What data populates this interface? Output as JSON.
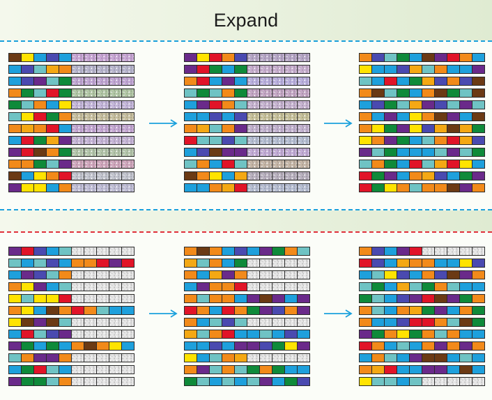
{
  "title": "Expand",
  "palette": {
    "P": "#6a2a8a",
    "R": "#e11428",
    "G": "#0f8a3a",
    "T": "#6fc3c4",
    "B": "#1ea0dc",
    "O": "#f28a1a",
    "Y": "#ffe300",
    "Br": "#6b3a14",
    "N": "#4a4ab0",
    "A": "#f4a814"
  },
  "accent": {
    "blue": "#1aa0dc",
    "red": "#e0303a"
  },
  "panels": [
    {
      "name": "top-panel",
      "steps": [
        {
          "rows": [
            {
              "colors": [
                "Br",
                "Y",
                "B",
                "N",
                "B"
              ],
              "tint": "#c9a7d6"
            },
            {
              "colors": [
                "B",
                "N",
                "T",
                "A",
                "O"
              ],
              "tint": "#b9b7cf"
            },
            {
              "colors": [
                "B",
                "N",
                "P",
                "T",
                "G"
              ],
              "tint": "#c3a8d6"
            },
            {
              "colors": [
                "O",
                "G",
                "T",
                "R",
                "G"
              ],
              "tint": "#b4c9a8"
            },
            {
              "colors": [
                "G",
                "T",
                "O",
                "B",
                "Y"
              ],
              "tint": "#c6b8dc"
            },
            {
              "colors": [
                "T",
                "Y",
                "R",
                "G",
                "O"
              ],
              "tint": "#c8c0a0"
            },
            {
              "colors": [
                "O",
                "A",
                "O",
                "R",
                "B"
              ],
              "tint": "#c6a9d4"
            },
            {
              "colors": [
                "B",
                "R",
                "G",
                "A",
                "P"
              ],
              "tint": "#c7b6d8"
            },
            {
              "colors": [
                "P",
                "R",
                "Br",
                "O",
                "G"
              ],
              "tint": "#b6c8ad"
            },
            {
              "colors": [
                "O",
                "O",
                "G",
                "T",
                "P"
              ],
              "tint": "#d2a9bf"
            },
            {
              "colors": [
                "Br",
                "B",
                "Y",
                "O",
                "R"
              ],
              "tint": "#c4c6d0"
            },
            {
              "colors": [
                "P",
                "Y",
                "Y",
                "B",
                "O"
              ],
              "tint": "#c2c0d8"
            }
          ]
        },
        {
          "rows": [
            {
              "colors": [
                "P",
                "Y",
                "R",
                "O",
                "N"
              ],
              "tint": "#b8a8c8"
            },
            {
              "colors": [
                "P",
                "R",
                "G",
                "B",
                "G"
              ],
              "tint": "#c9b0d0"
            },
            {
              "colors": [
                "O",
                "R",
                "B",
                "P",
                "B"
              ],
              "tint": "#bcb2e0"
            },
            {
              "colors": [
                "T",
                "G",
                "T",
                "O",
                "G"
              ],
              "tint": "#c6a9c7"
            },
            {
              "colors": [
                "B",
                "P",
                "R",
                "O",
                "T"
              ],
              "tint": "#c8b5d2"
            },
            {
              "colors": [
                "B",
                "B",
                "N",
                "B",
                "N"
              ],
              "tint": "#c8c29c"
            },
            {
              "colors": [
                "O",
                "A",
                "T",
                "O",
                "P"
              ],
              "tint": "#c3b3d0"
            },
            {
              "colors": [
                "R",
                "T",
                "T",
                "N",
                "T"
              ],
              "tint": "#b7c0d4"
            },
            {
              "colors": [
                "B",
                "N",
                "Br",
                "P",
                "P"
              ],
              "tint": "#c4aed8"
            },
            {
              "colors": [
                "T",
                "O",
                "B",
                "R",
                "T"
              ],
              "tint": "#c7b8a9"
            },
            {
              "colors": [
                "Br",
                "O",
                "Y",
                "B",
                "A"
              ],
              "tint": "#bab2c0"
            },
            {
              "colors": [
                "B",
                "B",
                "O",
                "A",
                "R"
              ],
              "tint": "#b8c0d4"
            }
          ]
        },
        {
          "rows": [
            {
              "colors": [
                "O",
                "N",
                "T",
                "G",
                "B"
              ],
              "extras": [
                "Br",
                "P",
                "R",
                "O",
                "B"
              ]
            },
            {
              "colors": [
                "Y",
                "B",
                "B",
                "N",
                "A"
              ],
              "extras": [
                "T",
                "O",
                "B",
                "B",
                "P"
              ]
            },
            {
              "colors": [
                "T",
                "B",
                "R",
                "B",
                "G"
              ],
              "extras": [
                "A",
                "N",
                "O",
                "N",
                "Br"
              ]
            },
            {
              "colors": [
                "O",
                "Br",
                "T",
                "G",
                "B"
              ],
              "extras": [
                "O",
                "Br",
                "G",
                "T",
                "Br"
              ]
            },
            {
              "colors": [
                "B",
                "N",
                "G",
                "T",
                "A"
              ],
              "extras": [
                "P",
                "N",
                "T",
                "P",
                "T"
              ]
            },
            {
              "colors": [
                "O",
                "B",
                "P",
                "B",
                "Y"
              ],
              "extras": [
                "O",
                "Br",
                "P",
                "B",
                "Br"
              ]
            },
            {
              "colors": [
                "O",
                "Y",
                "G",
                "P",
                "Y"
              ],
              "extras": [
                "N",
                "A",
                "Br",
                "A",
                "G"
              ]
            },
            {
              "colors": [
                "Y",
                "O",
                "P",
                "G",
                "B"
              ],
              "extras": [
                "T",
                "O",
                "R",
                "A",
                "N"
              ]
            },
            {
              "colors": [
                "P",
                "T",
                "G",
                "B",
                "B"
              ],
              "extras": [
                "B",
                "T",
                "P",
                "T",
                "G"
              ]
            },
            {
              "colors": [
                "T",
                "O",
                "G",
                "B",
                "R"
              ],
              "extras": [
                "T",
                "A",
                "R",
                "Y",
                "B"
              ]
            },
            {
              "colors": [
                "R",
                "G",
                "P",
                "B",
                "O"
              ],
              "extras": [
                "A",
                "N",
                "B",
                "G",
                "P"
              ]
            },
            {
              "colors": [
                "R",
                "G",
                "Y",
                "O",
                "T"
              ],
              "extras": [
                "O",
                "O",
                "Br",
                "P",
                "O"
              ]
            }
          ]
        }
      ]
    },
    {
      "name": "bottom-panel",
      "steps": [
        {
          "rows": [
            {
              "colors": [
                "P",
                "R",
                "N",
                "B",
                "T"
              ]
            },
            {
              "colors": [
                "T",
                "B",
                "T",
                "N",
                "B"
              ],
              "extras": [
                "O",
                "O",
                "R",
                "P",
                "R"
              ]
            },
            {
              "colors": [
                "B",
                "P",
                "N",
                "T",
                "O"
              ]
            },
            {
              "colors": [
                "O",
                "Y",
                "P",
                "B",
                "T"
              ]
            },
            {
              "colors": [
                "Y",
                "T",
                "Y",
                "Y",
                "R"
              ]
            },
            {
              "colors": [
                "O",
                "Y",
                "B",
                "Br",
                "O"
              ],
              "extras": [
                "R",
                "O",
                "T",
                "B",
                "B"
              ]
            },
            {
              "colors": [
                "Y",
                "Br",
                "P",
                "Br",
                "T"
              ]
            },
            {
              "colors": [
                "B",
                "R",
                "T",
                "N",
                "P"
              ]
            },
            {
              "colors": [
                "P",
                "G",
                "B",
                "G",
                "B"
              ],
              "extras": [
                "O",
                "Br",
                "O",
                "Y",
                "B"
              ]
            },
            {
              "colors": [
                "T",
                "O",
                "P",
                "P",
                "O"
              ]
            },
            {
              "colors": [
                "B",
                "G",
                "R",
                "T",
                "B"
              ]
            },
            {
              "colors": [
                "P",
                "G",
                "G",
                "T",
                "O"
              ]
            }
          ]
        },
        {
          "rows": [
            {
              "colors": [
                "O",
                "Br",
                "O",
                "B",
                "N"
              ],
              "extras": [
                "B",
                "P",
                "G",
                "O",
                "T"
              ]
            },
            {
              "colors": [
                "A",
                "T",
                "O",
                "B",
                "G"
              ]
            },
            {
              "colors": [
                "O",
                "B",
                "A",
                "P",
                "O"
              ]
            },
            {
              "colors": [
                "B",
                "P",
                "O",
                "O",
                "R"
              ]
            },
            {
              "colors": [
                "O",
                "T",
                "O",
                "O",
                "B"
              ],
              "extras": [
                "P",
                "Br",
                "P",
                "B",
                "P"
              ]
            },
            {
              "colors": [
                "R",
                "O",
                "B",
                "R",
                "O"
              ],
              "extras": [
                "G",
                "P",
                "N",
                "O",
                "P"
              ]
            },
            {
              "colors": [
                "O",
                "B",
                "T",
                "N",
                "T"
              ]
            },
            {
              "colors": [
                "A",
                "T",
                "O",
                "R",
                "B"
              ],
              "extras": [
                "B",
                "T",
                "B",
                "N",
                "B"
              ]
            },
            {
              "colors": [
                "B",
                "B",
                "N",
                "B",
                "P"
              ],
              "extras": [
                "P",
                "N",
                "G",
                "Y",
                "P"
              ]
            },
            {
              "colors": [
                "Y",
                "B",
                "T",
                "O",
                "A"
              ]
            },
            {
              "colors": [
                "O",
                "P",
                "T",
                "O",
                "T"
              ],
              "extras": [
                "G",
                "O",
                "G",
                "B",
                "B"
              ]
            },
            {
              "colors": [
                "G",
                "T",
                "B",
                "T",
                "B"
              ],
              "extras": [
                "T",
                "P",
                "B",
                "G",
                "N"
              ]
            }
          ]
        },
        {
          "rows": [
            {
              "colors": [
                "O",
                "N",
                "B",
                "P",
                "R"
              ]
            },
            {
              "colors": [
                "R",
                "N",
                "B",
                "A",
                "O"
              ],
              "extras": [
                "O",
                "B",
                "B",
                "Y",
                "N"
              ]
            },
            {
              "colors": [
                "B",
                "T",
                "Y",
                "N",
                "B"
              ],
              "extras": [
                "O",
                "N",
                "Br",
                "P",
                "O"
              ]
            },
            {
              "colors": [
                "T",
                "G",
                "B",
                "A",
                "T"
              ],
              "extras": [
                "G",
                "O",
                "T",
                "B",
                "B"
              ]
            },
            {
              "colors": [
                "G",
                "T",
                "B",
                "N",
                "P"
              ],
              "extras": [
                "R",
                "Br",
                "P",
                "G",
                "O"
              ]
            },
            {
              "colors": [
                "O",
                "T",
                "B",
                "O",
                "A"
              ],
              "extras": [
                "G",
                "P",
                "B",
                "O",
                "G"
              ]
            },
            {
              "colors": [
                "O",
                "B",
                "B",
                "N",
                "R"
              ],
              "extras": [
                "R",
                "O",
                "T",
                "Br",
                "G"
              ]
            },
            {
              "colors": [
                "P",
                "G",
                "O",
                "Y",
                "G"
              ],
              "extras": [
                "O",
                "T",
                "O",
                "B",
                "B"
              ]
            },
            {
              "colors": [
                "R",
                "O",
                "B",
                "T",
                "B"
              ],
              "extras": [
                "O",
                "P",
                "O",
                "P",
                "O"
              ]
            },
            {
              "colors": [
                "B",
                "O",
                "T",
                "B",
                "P"
              ],
              "extras": [
                "Br",
                "Br",
                "B",
                "T",
                "B"
              ]
            },
            {
              "colors": [
                "O",
                "A",
                "R",
                "B",
                "B"
              ],
              "extras": [
                "P",
                "P",
                "B",
                "Br",
                "B"
              ]
            },
            {
              "colors": [
                "Y",
                "T",
                "T",
                "B",
                "T"
              ]
            }
          ]
        }
      ]
    }
  ]
}
